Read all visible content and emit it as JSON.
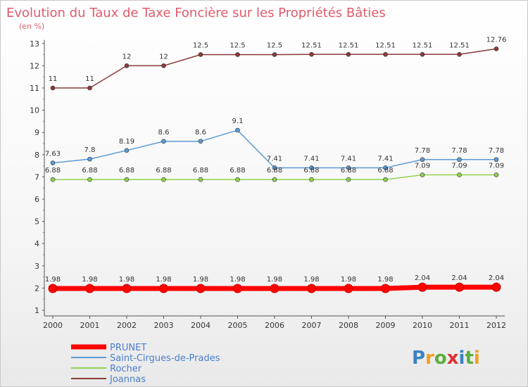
{
  "chart_data": {
    "type": "line",
    "title": "Evolution du Taux de Taxe Foncière sur les Propriétés Bâties",
    "subtitle": "(en %)",
    "x": [
      "2000",
      "2001",
      "2002",
      "2003",
      "2004",
      "2005",
      "2006",
      "2007",
      "2008",
      "2009",
      "2010",
      "2011",
      "2012"
    ],
    "yticks": [
      "1",
      "2",
      "3",
      "4",
      "5",
      "6",
      "7",
      "8",
      "9",
      "10",
      "11",
      "12",
      "13"
    ],
    "ylim": [
      1,
      13
    ],
    "grid": false,
    "legend_position": "bottom-left",
    "series": [
      {
        "name": "PRUNET",
        "color": "#ff0000",
        "values": [
          1.98,
          1.98,
          1.98,
          1.98,
          1.98,
          1.98,
          1.98,
          1.98,
          1.98,
          1.98,
          2.04,
          2.04,
          2.04
        ],
        "labels": [
          "1.98",
          "1.98",
          "1.98",
          "1.98",
          "1.98",
          "1.98",
          "1.98",
          "1.98",
          "1.98",
          "1.98",
          "2.04",
          "2.04",
          "2.04"
        ]
      },
      {
        "name": "Saint-Cirgues-de-Prades",
        "color": "#5b9bd5",
        "values": [
          7.63,
          7.8,
          8.19,
          8.6,
          8.6,
          9.1,
          7.41,
          7.41,
          7.41,
          7.41,
          7.78,
          7.78,
          7.78
        ],
        "labels": [
          "7.63",
          "7.8",
          "8.19",
          "8.6",
          "8.6",
          "9.1",
          "7.41",
          "7.41",
          "7.41",
          "7.41",
          "7.78",
          "7.78",
          "7.78"
        ]
      },
      {
        "name": "Rocher",
        "color": "#8fd14f",
        "values": [
          6.88,
          6.88,
          6.88,
          6.88,
          6.88,
          6.88,
          6.88,
          6.88,
          6.88,
          6.88,
          7.09,
          7.09,
          7.09
        ],
        "labels": [
          "6.88",
          "6.88",
          "6.88",
          "6.88",
          "6.88",
          "6.88",
          "6.88",
          "6.88",
          "6.88",
          "6.88",
          "7.09",
          "7.09",
          "7.09"
        ]
      },
      {
        "name": "Joannas",
        "color": "#8b3a3a",
        "values": [
          11,
          11,
          12,
          12,
          12.5,
          12.5,
          12.5,
          12.51,
          12.51,
          12.51,
          12.51,
          12.51,
          12.76
        ],
        "labels": [
          "11",
          "11",
          "12",
          "12",
          "12.5",
          "12.5",
          "12.5",
          "12.51",
          "12.51",
          "12.51",
          "12.51",
          "12.51",
          "12.76"
        ]
      }
    ]
  },
  "logo": {
    "text": "Proxiti"
  }
}
